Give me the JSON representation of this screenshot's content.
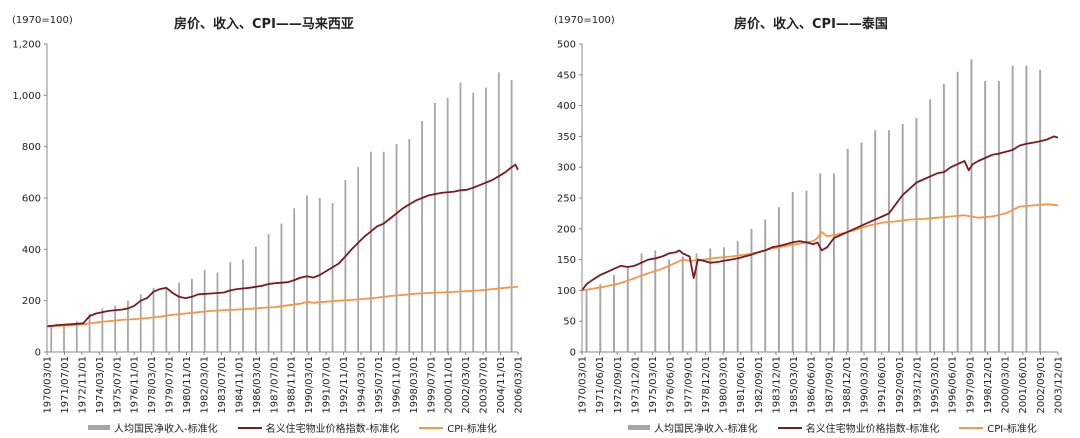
{
  "colors": {
    "income": "#a6a6a6",
    "house": "#7a1b20",
    "cpi": "#f79646",
    "axis": "#888888"
  },
  "chart_data": [
    {
      "type": "bar+line",
      "title": "房价、收入、CPI——马来西亚",
      "base_label": "(1970=100)",
      "yticks": [
        "0",
        "200",
        "400",
        "600",
        "800",
        "1,000",
        "1,200"
      ],
      "ylim": [
        0,
        1200
      ],
      "xlabels": [
        "1970/03/01",
        "1971/07/01",
        "1972/11/01",
        "1974/03/01",
        "1975/07/01",
        "1976/11/01",
        "1978/03/01",
        "1979/07/01",
        "1980/11/01",
        "1982/03/01",
        "1983/07/01",
        "1984/11/01",
        "1986/03/01",
        "1987/07/01",
        "1988/11/01",
        "1990/03/01",
        "1991/07/01",
        "1992/11/01",
        "1994/03/01",
        "1995/07/01",
        "1996/11/01",
        "1998/03/01",
        "1999/07/01",
        "2000/11/01",
        "2002/03/01",
        "2003/07/01",
        "2004/11/01",
        "2006/03/01"
      ],
      "x_range": [
        1970.17,
        2007.0
      ],
      "series": [
        {
          "name": "人均国民净收入-标准化",
          "kind": "bar",
          "x": [
            1970.5,
            1971.5,
            1972.5,
            1973.5,
            1974.5,
            1975.5,
            1976.5,
            1977.5,
            1978.5,
            1979.5,
            1980.5,
            1981.5,
            1982.5,
            1983.5,
            1984.5,
            1985.5,
            1986.5,
            1987.5,
            1988.5,
            1989.5,
            1990.5,
            1991.5,
            1992.5,
            1993.5,
            1994.5,
            1995.5,
            1996.5,
            1997.5,
            1998.5,
            1999.5,
            2000.5,
            2001.5,
            2002.5,
            2003.5,
            2004.5,
            2005.5,
            2006.5
          ],
          "values": [
            100,
            100,
            120,
            150,
            170,
            180,
            200,
            225,
            250,
            250,
            270,
            285,
            320,
            310,
            350,
            360,
            410,
            460,
            500,
            560,
            610,
            600,
            580,
            670,
            720,
            780,
            780,
            810,
            830,
            900,
            970,
            990,
            1050,
            1010,
            1030,
            1090,
            1060
          ]
        },
        {
          "name": "名义住宅物业价格指数-标准化",
          "kind": "line",
          "x": [
            1970.17,
            1971.0,
            1972.0,
            1973.0,
            1973.5,
            1974.0,
            1975.0,
            1976.0,
            1976.5,
            1977.0,
            1977.5,
            1978.0,
            1978.5,
            1979.0,
            1979.5,
            1980.0,
            1980.5,
            1981.0,
            1981.5,
            1982.0,
            1983.0,
            1984.0,
            1984.5,
            1985.0,
            1986.0,
            1987.0,
            1987.5,
            1988.0,
            1989.0,
            1989.5,
            1990.0,
            1990.5,
            1991.0,
            1991.5,
            1992.0,
            1993.0,
            1994.0,
            1995.0,
            1995.5,
            1996.0,
            1996.5,
            1997.0,
            1997.5,
            1998.0,
            1998.5,
            1999.0,
            1999.5,
            2000.0,
            2001.0,
            2002.0,
            2002.5,
            2003.0,
            2003.5,
            2004.0,
            2004.5,
            2005.0,
            2005.5,
            2006.0,
            2006.5,
            2006.8,
            2007.0
          ],
          "values": [
            100,
            105,
            108,
            112,
            140,
            150,
            160,
            165,
            170,
            180,
            200,
            210,
            235,
            245,
            250,
            230,
            215,
            210,
            215,
            225,
            228,
            232,
            240,
            245,
            250,
            258,
            265,
            268,
            272,
            280,
            290,
            295,
            290,
            300,
            315,
            345,
            400,
            450,
            470,
            490,
            500,
            520,
            540,
            560,
            575,
            590,
            600,
            610,
            620,
            625,
            630,
            632,
            640,
            650,
            660,
            670,
            685,
            700,
            720,
            730,
            710
          ]
        },
        {
          "name": "CPI-标准化",
          "kind": "line",
          "x": [
            1970.17,
            1971.0,
            1972.0,
            1973.0,
            1974.0,
            1975.0,
            1976.0,
            1977.0,
            1978.0,
            1979.0,
            1980.0,
            1981.0,
            1982.0,
            1983.0,
            1984.0,
            1985.0,
            1986.0,
            1987.0,
            1988.0,
            1989.0,
            1990.0,
            1990.5,
            1991.0,
            1992.0,
            1993.0,
            1994.0,
            1995.0,
            1996.0,
            1997.0,
            1998.0,
            1999.0,
            2000.0,
            2001.0,
            2002.0,
            2003.0,
            2004.0,
            2005.0,
            2006.0,
            2007.0
          ],
          "values": [
            100,
            102,
            104,
            108,
            115,
            120,
            125,
            128,
            132,
            138,
            145,
            150,
            155,
            160,
            163,
            165,
            168,
            172,
            175,
            182,
            188,
            195,
            192,
            196,
            200,
            203,
            207,
            212,
            218,
            222,
            227,
            230,
            232,
            234,
            237,
            240,
            245,
            250,
            255
          ]
        }
      ]
    },
    {
      "type": "bar+line",
      "title": "房价、收入、CPI——泰国",
      "base_label": "(1970=100)",
      "yticks": [
        "0",
        "50",
        "100",
        "150",
        "200",
        "250",
        "300",
        "350",
        "400",
        "450",
        "500"
      ],
      "ylim": [
        0,
        500
      ],
      "xlabels": [
        "1970/03/01",
        "1971/06/01",
        "1972/09/01",
        "1973/12/01",
        "1975/03/01",
        "1976/06/01",
        "1977/09/01",
        "1978/12/01",
        "1980/03/01",
        "1981/06/01",
        "1982/09/01",
        "1983/12/01",
        "1985/03/01",
        "1986/06/01",
        "1987/09/01",
        "1988/12/01",
        "1990/03/01",
        "1991/06/01",
        "1992/09/01",
        "1993/12/01",
        "1995/03/01",
        "1996/06/01",
        "1997/09/01",
        "1998/12/01",
        "2000/03/01",
        "2001/06/01",
        "2002/09/01",
        "2003/12/01"
      ],
      "x_range": [
        1970.17,
        2004.8
      ],
      "series": [
        {
          "name": "人均国民净收入-标准化",
          "kind": "bar",
          "x": [
            1970.5,
            1971.5,
            1972.5,
            1973.5,
            1974.5,
            1975.5,
            1976.5,
            1977.5,
            1978.5,
            1979.5,
            1980.5,
            1981.5,
            1982.5,
            1983.5,
            1984.5,
            1985.5,
            1986.5,
            1987.5,
            1988.5,
            1989.5,
            1990.5,
            1991.5,
            1992.5,
            1993.5,
            1994.5,
            1995.5,
            1996.5,
            1997.5,
            1998.5,
            1999.5,
            2000.5,
            2001.5,
            2002.5,
            2003.5
          ],
          "values": [
            100,
            110,
            125,
            140,
            160,
            165,
            150,
            155,
            160,
            168,
            170,
            180,
            200,
            215,
            235,
            260,
            262,
            290,
            290,
            330,
            340,
            360,
            360,
            370,
            380,
            410,
            435,
            455,
            475,
            440,
            440,
            465,
            465,
            458
          ]
        },
        {
          "name": "名义住宅物业价格指数-标准化",
          "kind": "line",
          "x": [
            1970.17,
            1970.5,
            1971.0,
            1971.5,
            1972.0,
            1972.5,
            1973.0,
            1973.5,
            1974.0,
            1974.5,
            1975.0,
            1975.5,
            1976.0,
            1976.5,
            1977.0,
            1977.25,
            1977.5,
            1978.0,
            1978.3,
            1978.6,
            1979.0,
            1979.5,
            1980.0,
            1980.5,
            1981.0,
            1981.5,
            1982.0,
            1982.5,
            1983.0,
            1983.5,
            1984.0,
            1984.5,
            1985.0,
            1985.5,
            1986.0,
            1986.5,
            1987.0,
            1987.3,
            1987.6,
            1988.0,
            1988.5,
            1989.0,
            1989.5,
            1990.0,
            1990.5,
            1991.0,
            1991.5,
            1992.0,
            1992.5,
            1993.0,
            1993.5,
            1994.0,
            1994.5,
            1995.0,
            1995.5,
            1996.0,
            1996.5,
            1997.0,
            1997.5,
            1998.0,
            1998.3,
            1998.6,
            1999.0,
            1999.5,
            2000.0,
            2000.5,
            2001.0,
            2001.5,
            2002.0,
            2002.5,
            2003.0,
            2003.5,
            2004.0,
            2004.5,
            2004.8
          ],
          "values": [
            100,
            110,
            118,
            125,
            130,
            135,
            140,
            138,
            140,
            145,
            150,
            152,
            155,
            160,
            162,
            165,
            160,
            155,
            120,
            150,
            148,
            145,
            146,
            148,
            150,
            152,
            155,
            158,
            162,
            165,
            170,
            172,
            175,
            178,
            180,
            178,
            175,
            178,
            165,
            170,
            185,
            190,
            195,
            200,
            205,
            210,
            215,
            220,
            225,
            240,
            255,
            265,
            275,
            280,
            285,
            290,
            292,
            300,
            305,
            310,
            295,
            305,
            310,
            315,
            320,
            322,
            325,
            328,
            335,
            338,
            340,
            342,
            345,
            350,
            348
          ]
        },
        {
          "name": "CPI-标准化",
          "kind": "line",
          "x": [
            1970.17,
            1971.0,
            1972.0,
            1973.0,
            1974.0,
            1975.0,
            1976.0,
            1977.0,
            1977.5,
            1978.0,
            1979.0,
            1980.0,
            1981.0,
            1982.0,
            1983.0,
            1984.0,
            1985.0,
            1986.0,
            1987.0,
            1987.3,
            1987.6,
            1988.0,
            1989.0,
            1990.0,
            1991.0,
            1992.0,
            1993.0,
            1994.0,
            1995.0,
            1996.0,
            1997.0,
            1998.0,
            1999.0,
            2000.0,
            2001.0,
            2002.0,
            2003.0,
            2004.0,
            2004.8
          ],
          "values": [
            100,
            103,
            107,
            112,
            120,
            128,
            135,
            145,
            150,
            148,
            150,
            153,
            155,
            158,
            162,
            168,
            172,
            176,
            180,
            185,
            195,
            188,
            192,
            198,
            205,
            210,
            212,
            215,
            216,
            218,
            220,
            222,
            218,
            220,
            225,
            236,
            238,
            240,
            238
          ]
        }
      ]
    }
  ]
}
